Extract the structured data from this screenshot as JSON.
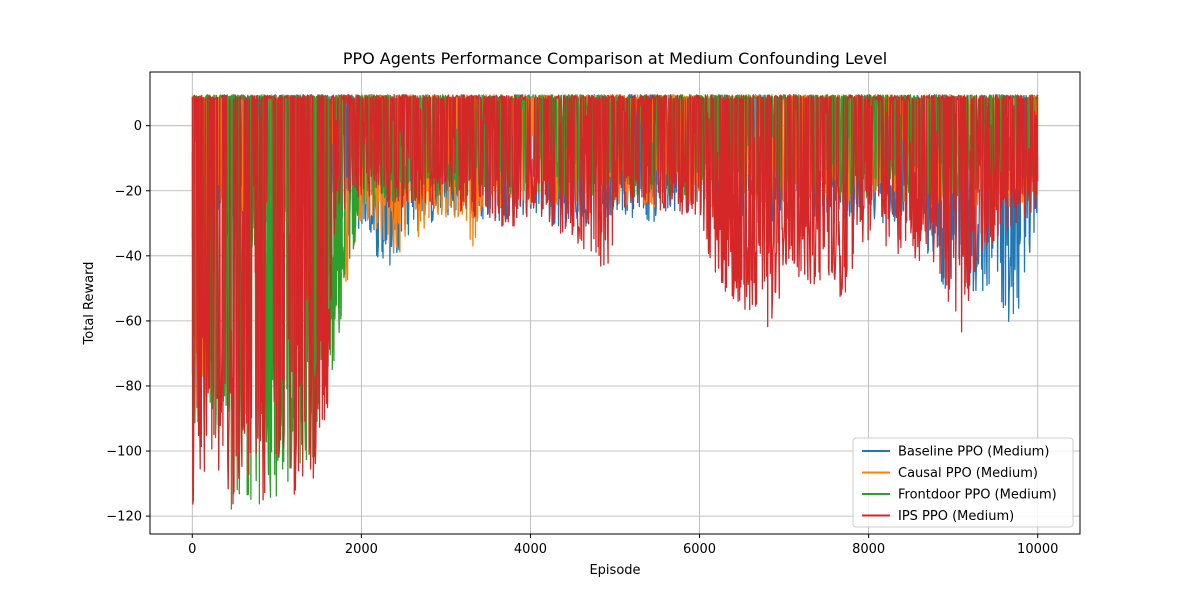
{
  "chart_data": {
    "type": "line",
    "title": "PPO Agents Performance Comparison at Medium Confounding Level",
    "xlabel": "Episode",
    "ylabel": "Total Reward",
    "xlim": [
      -500,
      10500
    ],
    "ylim": [
      -125.5,
      16.5
    ],
    "xticks": [
      0,
      2000,
      4000,
      6000,
      8000,
      10000
    ],
    "yticks": [
      -120,
      -100,
      -80,
      -60,
      -40,
      -20,
      0
    ],
    "grid": true,
    "legend_position": "lower right",
    "series": [
      {
        "name": "Baseline PPO (Medium)",
        "color": "#1f77b4",
        "x": [
          0,
          500,
          1000,
          1500,
          1800,
          2000,
          2300,
          2500,
          3000,
          3500,
          4000,
          4500,
          5000,
          5500,
          6000,
          6500,
          7000,
          7500,
          8000,
          8500,
          8900,
          9100,
          9500,
          9650,
          9850,
          10000
        ],
        "max": [
          9.5,
          9.5,
          9.5,
          9.5,
          9.5,
          9.5,
          9.5,
          9.5,
          9.5,
          9.5,
          9.5,
          9.5,
          9.5,
          9.5,
          9.5,
          9.5,
          9.5,
          9.5,
          9.5,
          9.5,
          9.5,
          9.5,
          9.5,
          9.5,
          9.5,
          9.5
        ],
        "min": [
          -40,
          -35,
          -30,
          -30,
          -35,
          -32,
          -46,
          -35,
          -28,
          -30,
          -27,
          -33,
          -27,
          -30,
          -25,
          -30,
          -30,
          -30,
          -30,
          -30,
          -50,
          -51,
          -51,
          -65,
          -52,
          -25
        ]
      },
      {
        "name": "Causal PPO (Medium)",
        "color": "#ff7f0e",
        "x": [
          0,
          300,
          800,
          1300,
          1750,
          2000,
          2450,
          2800,
          3200,
          3260,
          3500,
          4000,
          5000,
          6000,
          7000,
          8000,
          9000,
          10000
        ],
        "max": [
          9.5,
          9.5,
          9.5,
          9.5,
          9.5,
          9.5,
          9.5,
          9.5,
          9.5,
          9.5,
          9.5,
          9.5,
          9.5,
          9.5,
          9.5,
          9.5,
          9.5,
          9.5
        ],
        "min": [
          -120,
          -30,
          -30,
          -30,
          -60,
          -30,
          -42,
          -30,
          -30,
          -41,
          -25,
          -25,
          -25,
          -25,
          -25,
          -25,
          -25,
          -25
        ]
      },
      {
        "name": "Frontdoor PPO (Medium)",
        "color": "#2ca02c",
        "x": [
          0,
          60,
          150,
          400,
          600,
          1000,
          1500,
          2000,
          3000,
          4000,
          5000,
          6000,
          7000,
          8000,
          9000,
          10000
        ],
        "max": [
          9.5,
          9.5,
          9.5,
          9.5,
          9.5,
          9.5,
          9.5,
          9.5,
          9.5,
          9.5,
          9.5,
          9.5,
          9.5,
          9.5,
          9.5,
          9.5
        ],
        "min": [
          -120,
          -70,
          -80,
          -119,
          -118,
          -115,
          -100,
          -25,
          -22,
          -22,
          -22,
          -22,
          -22,
          -22,
          -22,
          -22
        ]
      },
      {
        "name": "IPS PPO (Medium)",
        "color": "#d62728",
        "x": [
          0,
          200,
          500,
          800,
          1100,
          1400,
          1600,
          1650,
          1700,
          2000,
          3000,
          3900,
          4000,
          4950,
          5000,
          6000,
          6200,
          6900,
          7000,
          7700,
          7850,
          8000,
          8800,
          9100,
          9300,
          10000
        ],
        "max": [
          9.5,
          9.5,
          9.5,
          9.5,
          9.5,
          9.5,
          9.5,
          9.5,
          9.5,
          9.5,
          9.5,
          9.5,
          9.5,
          9.5,
          9.5,
          9.5,
          9.5,
          9.5,
          9.5,
          9.5,
          9.5,
          9.5,
          9.5,
          9.5,
          9.5,
          9.5
        ],
        "min": [
          -120,
          -120,
          -118,
          -117,
          -115,
          -110,
          -100,
          -60,
          -28,
          -25,
          -25,
          -33,
          -25,
          -47,
          -25,
          -28,
          -50,
          -64,
          -45,
          -55,
          -40,
          -35,
          -45,
          -67,
          -40,
          -25
        ]
      }
    ]
  }
}
